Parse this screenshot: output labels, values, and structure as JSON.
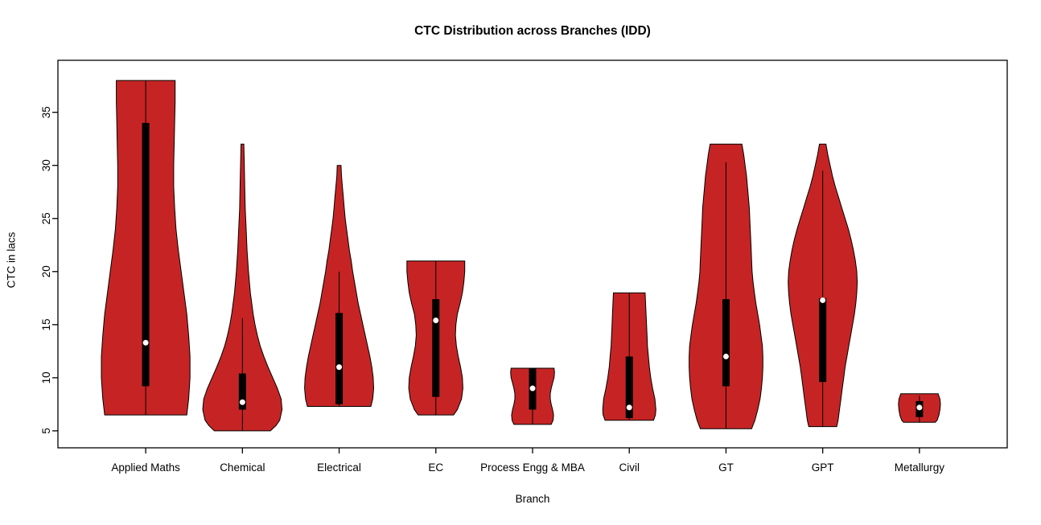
{
  "chart_data": {
    "type": "violin",
    "title": "CTC Distribution across Branches (IDD)",
    "xlabel": "Branch",
    "ylabel": "CTC in lacs",
    "ylim": [
      3.4,
      39.9
    ],
    "yticks": [
      5,
      10,
      15,
      20,
      25,
      30,
      35
    ],
    "legend": "none",
    "grid": false,
    "violin_fill": "#C62424",
    "violin_stroke": "#000000",
    "box_color": "#000000",
    "median_dot_color": "#ffffff",
    "categories": [
      "Applied Maths",
      "Chemical",
      "Electrical",
      "EC",
      "Process Engg & MBA",
      "Civil",
      "GT",
      "GPT",
      "Metallurgy"
    ],
    "violins": [
      {
        "label": "Applied Maths",
        "min": 6.5,
        "max": 38,
        "median": 13.3,
        "q1": 9.2,
        "q3": 34,
        "whisker_low": 6.5,
        "whisker_high": 38,
        "outline": [
          [
            6.5,
            0.88
          ],
          [
            8,
            0.92
          ],
          [
            10,
            0.95
          ],
          [
            12,
            0.95
          ],
          [
            14,
            0.92
          ],
          [
            16,
            0.88
          ],
          [
            18,
            0.82
          ],
          [
            20,
            0.76
          ],
          [
            22,
            0.7
          ],
          [
            24,
            0.65
          ],
          [
            26,
            0.62
          ],
          [
            28,
            0.6
          ],
          [
            30,
            0.6
          ],
          [
            32,
            0.61
          ],
          [
            34,
            0.62
          ],
          [
            36,
            0.63
          ],
          [
            38,
            0.63
          ]
        ]
      },
      {
        "label": "Chemical",
        "min": 5,
        "max": 32,
        "median": 7.7,
        "q1": 7.0,
        "q3": 10.4,
        "whisker_low": 5.0,
        "whisker_high": 15.6,
        "outline": [
          [
            5,
            0.6
          ],
          [
            5.5,
            0.72
          ],
          [
            6,
            0.8
          ],
          [
            7,
            0.85
          ],
          [
            8,
            0.83
          ],
          [
            9,
            0.75
          ],
          [
            10,
            0.65
          ],
          [
            11,
            0.55
          ],
          [
            12,
            0.46
          ],
          [
            13,
            0.38
          ],
          [
            14,
            0.32
          ],
          [
            15,
            0.27
          ],
          [
            16,
            0.23
          ],
          [
            18,
            0.17
          ],
          [
            20,
            0.13
          ],
          [
            22,
            0.1
          ],
          [
            24,
            0.08
          ],
          [
            26,
            0.06
          ],
          [
            28,
            0.05
          ],
          [
            30,
            0.04
          ],
          [
            32,
            0.03
          ]
        ]
      },
      {
        "label": "Electrical",
        "min": 7.3,
        "max": 30,
        "median": 11.0,
        "q1": 7.5,
        "q3": 16.1,
        "whisker_low": 7.3,
        "whisker_high": 20.0,
        "outline": [
          [
            7.3,
            0.68
          ],
          [
            8,
            0.72
          ],
          [
            9,
            0.74
          ],
          [
            10,
            0.73
          ],
          [
            11,
            0.7
          ],
          [
            12,
            0.66
          ],
          [
            13,
            0.61
          ],
          [
            14,
            0.56
          ],
          [
            15,
            0.51
          ],
          [
            16,
            0.46
          ],
          [
            17,
            0.41
          ],
          [
            18,
            0.37
          ],
          [
            19,
            0.33
          ],
          [
            20,
            0.29
          ],
          [
            21,
            0.26
          ],
          [
            22,
            0.22
          ],
          [
            23,
            0.19
          ],
          [
            24,
            0.16
          ],
          [
            25,
            0.13
          ],
          [
            26,
            0.11
          ],
          [
            27,
            0.09
          ],
          [
            28,
            0.07
          ],
          [
            29,
            0.05
          ],
          [
            30,
            0.04
          ]
        ]
      },
      {
        "label": "EC",
        "min": 6.5,
        "max": 21,
        "median": 15.4,
        "q1": 8.2,
        "q3": 17.4,
        "whisker_low": 6.5,
        "whisker_high": 21,
        "outline": [
          [
            6.5,
            0.38
          ],
          [
            7,
            0.46
          ],
          [
            8,
            0.55
          ],
          [
            9,
            0.58
          ],
          [
            10,
            0.57
          ],
          [
            11,
            0.53
          ],
          [
            12,
            0.48
          ],
          [
            13,
            0.44
          ],
          [
            14,
            0.42
          ],
          [
            15,
            0.43
          ],
          [
            16,
            0.46
          ],
          [
            17,
            0.52
          ],
          [
            18,
            0.57
          ],
          [
            19,
            0.6
          ],
          [
            20,
            0.62
          ],
          [
            21,
            0.62
          ]
        ]
      },
      {
        "label": "Process Engg & MBA",
        "min": 5.6,
        "max": 10.9,
        "median": 9.0,
        "q1": 7.0,
        "q3": 10.9,
        "whisker_low": 5.6,
        "whisker_high": 10.9,
        "outline": [
          [
            5.6,
            0.4
          ],
          [
            6,
            0.44
          ],
          [
            6.5,
            0.45
          ],
          [
            7,
            0.43
          ],
          [
            7.5,
            0.4
          ],
          [
            8,
            0.38
          ],
          [
            8.5,
            0.38
          ],
          [
            9,
            0.4
          ],
          [
            9.5,
            0.43
          ],
          [
            10,
            0.46
          ],
          [
            10.5,
            0.47
          ],
          [
            10.9,
            0.46
          ]
        ]
      },
      {
        "label": "Civil",
        "min": 6,
        "max": 18,
        "median": 7.2,
        "q1": 6.2,
        "q3": 12.0,
        "whisker_low": 6.0,
        "whisker_high": 18.0,
        "outline": [
          [
            6,
            0.52
          ],
          [
            6.5,
            0.56
          ],
          [
            7,
            0.57
          ],
          [
            8,
            0.55
          ],
          [
            9,
            0.5
          ],
          [
            10,
            0.46
          ],
          [
            11,
            0.43
          ],
          [
            12,
            0.41
          ],
          [
            13,
            0.39
          ],
          [
            14,
            0.38
          ],
          [
            15,
            0.37
          ],
          [
            16,
            0.36
          ],
          [
            17,
            0.35
          ],
          [
            18,
            0.34
          ]
        ]
      },
      {
        "label": "GT",
        "min": 5.2,
        "max": 32,
        "median": 12.0,
        "q1": 9.2,
        "q3": 17.4,
        "whisker_low": 5.2,
        "whisker_high": 30.3,
        "outline": [
          [
            5.2,
            0.55
          ],
          [
            6,
            0.62
          ],
          [
            7,
            0.68
          ],
          [
            8,
            0.73
          ],
          [
            9,
            0.76
          ],
          [
            10,
            0.78
          ],
          [
            11,
            0.79
          ],
          [
            12,
            0.79
          ],
          [
            13,
            0.78
          ],
          [
            14,
            0.75
          ],
          [
            15,
            0.72
          ],
          [
            16,
            0.68
          ],
          [
            17,
            0.64
          ],
          [
            18,
            0.61
          ],
          [
            19,
            0.58
          ],
          [
            20,
            0.56
          ],
          [
            21,
            0.55
          ],
          [
            22,
            0.54
          ],
          [
            23,
            0.53
          ],
          [
            24,
            0.52
          ],
          [
            25,
            0.51
          ],
          [
            26,
            0.5
          ],
          [
            27,
            0.48
          ],
          [
            28,
            0.46
          ],
          [
            29,
            0.44
          ],
          [
            30,
            0.41
          ],
          [
            31,
            0.38
          ],
          [
            32,
            0.34
          ]
        ]
      },
      {
        "label": "GPT",
        "min": 5.4,
        "max": 32,
        "median": 17.3,
        "q1": 9.6,
        "q3": 17.5,
        "whisker_low": 5.4,
        "whisker_high": 29.5,
        "outline": [
          [
            5.4,
            0.3
          ],
          [
            6,
            0.33
          ],
          [
            7,
            0.36
          ],
          [
            8,
            0.39
          ],
          [
            9,
            0.42
          ],
          [
            10,
            0.45
          ],
          [
            11,
            0.48
          ],
          [
            12,
            0.52
          ],
          [
            13,
            0.56
          ],
          [
            14,
            0.6
          ],
          [
            15,
            0.64
          ],
          [
            16,
            0.68
          ],
          [
            17,
            0.71
          ],
          [
            18,
            0.73
          ],
          [
            19,
            0.74
          ],
          [
            20,
            0.73
          ],
          [
            21,
            0.7
          ],
          [
            22,
            0.66
          ],
          [
            23,
            0.61
          ],
          [
            24,
            0.55
          ],
          [
            25,
            0.48
          ],
          [
            26,
            0.41
          ],
          [
            27,
            0.34
          ],
          [
            28,
            0.27
          ],
          [
            29,
            0.21
          ],
          [
            30,
            0.16
          ],
          [
            31,
            0.11
          ],
          [
            32,
            0.07
          ]
        ]
      },
      {
        "label": "Metallurgy",
        "min": 5.8,
        "max": 8.5,
        "median": 7.2,
        "q1": 6.3,
        "q3": 7.8,
        "whisker_low": 5.8,
        "whisker_high": 8.3,
        "outline": [
          [
            5.8,
            0.34
          ],
          [
            6,
            0.38
          ],
          [
            6.5,
            0.42
          ],
          [
            7,
            0.44
          ],
          [
            7.5,
            0.45
          ],
          [
            8,
            0.44
          ],
          [
            8.5,
            0.4
          ]
        ]
      }
    ]
  }
}
